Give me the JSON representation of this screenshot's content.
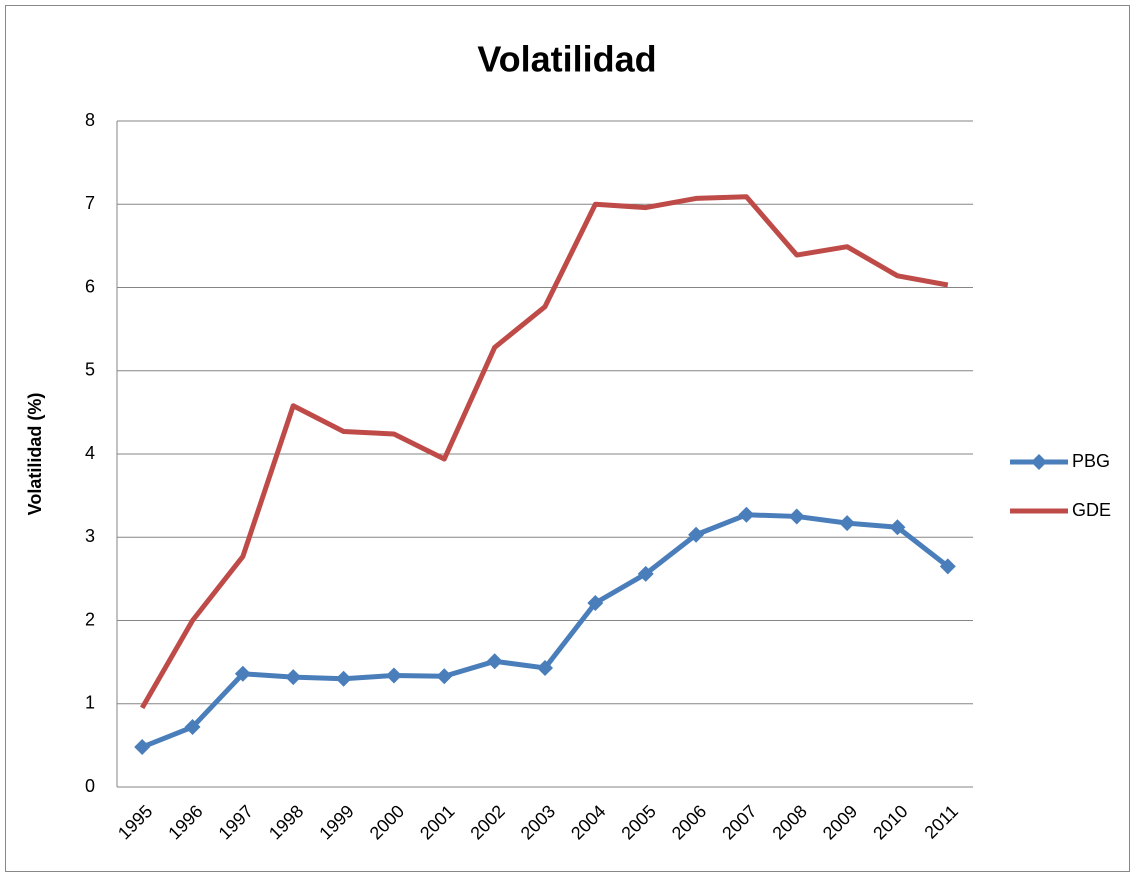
{
  "chart_data": {
    "type": "line",
    "title": "Volatilidad",
    "y_label": "Volatilidad (%)",
    "categories": [
      "1995",
      "1996",
      "1997",
      "1998",
      "1999",
      "2000",
      "2001",
      "2002",
      "2003",
      "2004",
      "2005",
      "2006",
      "2007",
      "2008",
      "2009",
      "2010",
      "2011"
    ],
    "series": [
      {
        "name": "PBG",
        "color": "#4a7ebb",
        "marker": "diamond",
        "values": [
          0.48,
          0.72,
          1.36,
          1.32,
          1.3,
          1.34,
          1.33,
          1.51,
          1.43,
          2.21,
          2.56,
          3.03,
          3.27,
          3.25,
          3.17,
          3.12,
          2.65
        ]
      },
      {
        "name": "GDE",
        "color": "#be4b48",
        "values": [
          0.95,
          2.0,
          2.77,
          4.58,
          4.27,
          4.24,
          3.94,
          5.28,
          5.77,
          7.0,
          6.96,
          7.07,
          7.09,
          6.39,
          6.49,
          6.14,
          6.03
        ]
      }
    ],
    "ylim": [
      0,
      8
    ],
    "yticks": [
      0,
      1,
      2,
      3,
      4,
      5,
      6,
      7,
      8
    ],
    "grid": true,
    "legend": "right"
  }
}
